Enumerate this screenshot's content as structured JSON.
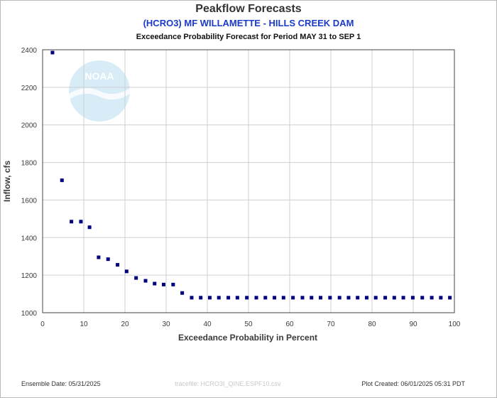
{
  "header": {
    "title": "Peakflow Forecasts",
    "station": "(HCRO3) MF WILLAMETTE - HILLS CREEK DAM",
    "subtitle": "Exceedance Probability Forecast for Period MAY 31 to SEP 1"
  },
  "footer": {
    "ensemble_date": "Ensemble Date: 05/31/2025",
    "tracefile": "tracefile: HCRO3I_QINE.ESPF10.csv",
    "plot_created": "Plot Created: 06/01/2025 05:31 PDT"
  },
  "watermark": {
    "text": "NOAA",
    "color": "#d7ecf6"
  },
  "colors": {
    "marker": "#00007f",
    "grid": "#cfcfcf",
    "axis_text": "#3a3a3a"
  },
  "chart_data": {
    "type": "scatter",
    "xlabel": "Exceedance Probability in Percent",
    "ylabel": "Inflow, cfs",
    "xlim": [
      0,
      100
    ],
    "ylim": [
      1000,
      2400
    ],
    "xticks": [
      0,
      10,
      20,
      30,
      40,
      50,
      60,
      70,
      80,
      90,
      100
    ],
    "yticks": [
      1000,
      1200,
      1400,
      1600,
      1800,
      2000,
      2200,
      2400
    ],
    "grid": true,
    "x": [
      2.4,
      4.7,
      7.0,
      9.3,
      11.4,
      13.6,
      15.9,
      18.2,
      20.4,
      22.7,
      25.0,
      27.2,
      29.4,
      31.7,
      33.9,
      36.2,
      38.4,
      40.6,
      42.8,
      45.1,
      47.3,
      49.6,
      51.9,
      54.1,
      56.3,
      58.5,
      60.8,
      63.1,
      65.3,
      67.5,
      69.8,
      72.1,
      74.3,
      76.5,
      78.7,
      80.9,
      83.2,
      85.4,
      87.6,
      89.9,
      92.2,
      94.5,
      96.7,
      98.9
    ],
    "y": [
      2385,
      1705,
      1485,
      1485,
      1455,
      1295,
      1285,
      1255,
      1220,
      1185,
      1170,
      1155,
      1150,
      1150,
      1105,
      1080,
      1080,
      1080,
      1080,
      1080,
      1080,
      1080,
      1080,
      1080,
      1080,
      1080,
      1080,
      1080,
      1080,
      1080,
      1080,
      1080,
      1080,
      1080,
      1080,
      1080,
      1080,
      1080,
      1080,
      1080,
      1080,
      1080,
      1080,
      1080
    ]
  }
}
